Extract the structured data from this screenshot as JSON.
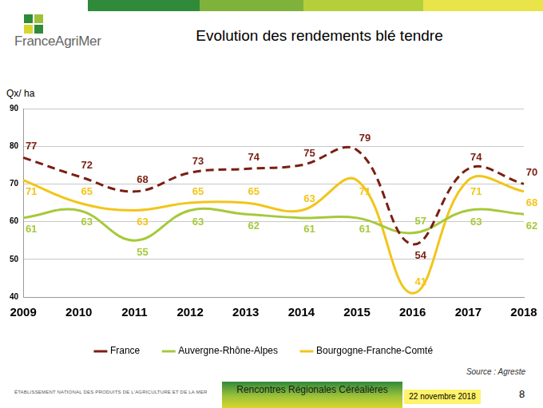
{
  "page": {
    "logo": "FranceAgriMer",
    "footer_left": "ÉTABLISSEMENT NATIONAL DES PRODUITS DE L'AGRICULTURE ET DE LA MER",
    "event": "Rencontres Régionales Céréalières",
    "date": "22 novembre 2018",
    "page_number": "8",
    "source": "Source : Agreste"
  },
  "chart_data": {
    "type": "line",
    "title": "Evolution des rendements blé tendre",
    "y_label": "Qx/ ha",
    "categories": [
      "2009",
      "2010",
      "2011",
      "2012",
      "2013",
      "2014",
      "2015",
      "2016",
      "2017",
      "2018"
    ],
    "series": [
      {
        "name": "France",
        "color": "#7b1e12",
        "line_style": "dashed",
        "marker": "none",
        "values": [
          77,
          72,
          68,
          73,
          74,
          75,
          79,
          54,
          74,
          70
        ]
      },
      {
        "name": "Auvergne-Rhône-Alpes",
        "color": "#a6c93b",
        "line_style": "solid",
        "marker": "none",
        "values": [
          61,
          63,
          55,
          63,
          62,
          61,
          61,
          57,
          63,
          62
        ]
      },
      {
        "name": "Bourgogne-Franche-Comté",
        "color": "#f2c51a",
        "line_style": "solid",
        "marker": "none",
        "values": [
          71,
          65,
          63,
          65,
          65,
          63,
          71,
          41,
          71,
          68
        ]
      }
    ],
    "ylim": [
      40,
      90
    ],
    "yticks": [
      40,
      50,
      60,
      70,
      80,
      90
    ],
    "grid": true,
    "legend": "bottom",
    "data_labels": true
  }
}
